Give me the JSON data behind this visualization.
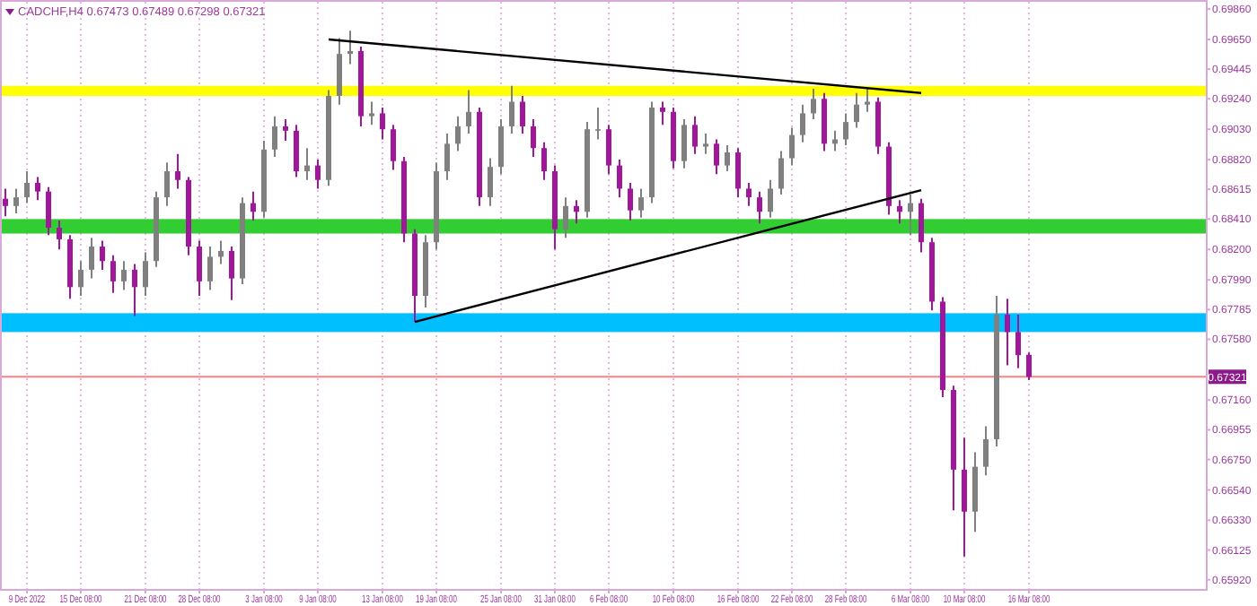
{
  "chart_data": {
    "type": "candlestick",
    "title": "CADCHF,H4 0.67473 0.67489 0.67298 0.67321",
    "categories": [
      null,
      null,
      "9 Dec 2022",
      null,
      null,
      null,
      null,
      "15 Dec 08:00",
      null,
      null,
      null,
      null,
      null,
      "21 Dec 08:00",
      null,
      null,
      null,
      null,
      "28 Dec 08:00",
      null,
      null,
      null,
      null,
      null,
      "3 Jan 08:00",
      null,
      null,
      null,
      null,
      "9 Jan 08:00",
      null,
      null,
      null,
      null,
      null,
      "13 Jan 08:00",
      null,
      null,
      null,
      null,
      "19 Jan 08:00",
      null,
      null,
      null,
      null,
      null,
      "25 Jan 08:00",
      null,
      null,
      null,
      null,
      "31 Jan 08:00",
      null,
      null,
      null,
      null,
      "6 Feb 08:00",
      null,
      null,
      null,
      null,
      null,
      "10 Feb 08:00",
      null,
      null,
      null,
      null,
      null,
      "16 Feb 08:00",
      null,
      null,
      null,
      null,
      "22 Feb 08:00",
      null,
      null,
      null,
      null,
      "28 Feb 08:00",
      null,
      null,
      null,
      null,
      null,
      "6 Mar 08:00",
      null,
      null,
      null,
      null,
      "10 Mar 08:00",
      null,
      null,
      null,
      null,
      null,
      "16 Mar 08:00",
      null,
      null,
      null,
      null,
      null,
      null,
      null,
      null,
      null,
      null,
      null,
      null,
      null,
      null,
      null,
      null
    ],
    "ohlc": [
      [
        0.6855,
        0.6862,
        0.6843,
        0.685
      ],
      [
        0.685,
        0.6862,
        0.6845,
        0.6856
      ],
      [
        0.6856,
        0.6874,
        0.6852,
        0.6866
      ],
      [
        0.6866,
        0.687,
        0.6854,
        0.686
      ],
      [
        0.686,
        0.6863,
        0.683,
        0.6835
      ],
      [
        0.6835,
        0.684,
        0.682,
        0.6827
      ],
      [
        0.6827,
        0.683,
        0.6786,
        0.6794
      ],
      [
        0.6794,
        0.6812,
        0.6788,
        0.6806
      ],
      [
        0.6806,
        0.6828,
        0.68,
        0.6822
      ],
      [
        0.6822,
        0.6826,
        0.6806,
        0.6812
      ],
      [
        0.6812,
        0.6816,
        0.679,
        0.6798
      ],
      [
        0.6798,
        0.6812,
        0.6792,
        0.6806
      ],
      [
        0.6806,
        0.681,
        0.6774,
        0.6794
      ],
      [
        0.6794,
        0.6818,
        0.6788,
        0.6812
      ],
      [
        0.6812,
        0.686,
        0.6808,
        0.6856
      ],
      [
        0.6856,
        0.688,
        0.685,
        0.6874
      ],
      [
        0.6874,
        0.6886,
        0.6862,
        0.6868
      ],
      [
        0.6868,
        0.687,
        0.6816,
        0.6822
      ],
      [
        0.6822,
        0.6826,
        0.6788,
        0.6798
      ],
      [
        0.6798,
        0.6822,
        0.6792,
        0.6815
      ],
      [
        0.6815,
        0.6826,
        0.681,
        0.6819
      ],
      [
        0.6819,
        0.6822,
        0.6785,
        0.68
      ],
      [
        0.68,
        0.6856,
        0.6796,
        0.6852
      ],
      [
        0.6852,
        0.686,
        0.684,
        0.6846
      ],
      [
        0.6846,
        0.6895,
        0.6842,
        0.6889
      ],
      [
        0.6889,
        0.6912,
        0.6884,
        0.6905
      ],
      [
        0.6905,
        0.691,
        0.6895,
        0.6902
      ],
      [
        0.6902,
        0.6906,
        0.687,
        0.6874
      ],
      [
        0.6874,
        0.689,
        0.6868,
        0.6878
      ],
      [
        0.6878,
        0.6882,
        0.6862,
        0.6868
      ],
      [
        0.6868,
        0.693,
        0.6864,
        0.6926
      ],
      [
        0.6926,
        0.6966,
        0.692,
        0.6955
      ],
      [
        0.6955,
        0.6971,
        0.6948,
        0.6957
      ],
      [
        0.6957,
        0.696,
        0.6905,
        0.6912
      ],
      [
        0.6912,
        0.6922,
        0.6906,
        0.6914
      ],
      [
        0.6914,
        0.6918,
        0.6896,
        0.6903
      ],
      [
        0.6903,
        0.6906,
        0.6875,
        0.6881
      ],
      [
        0.6881,
        0.6884,
        0.6825,
        0.6831
      ],
      [
        0.6831,
        0.6834,
        0.677,
        0.6788
      ],
      [
        0.6788,
        0.683,
        0.678,
        0.6825
      ],
      [
        0.6825,
        0.688,
        0.682,
        0.6874
      ],
      [
        0.6874,
        0.69,
        0.6868,
        0.6893
      ],
      [
        0.6893,
        0.6912,
        0.6888,
        0.6905
      ],
      [
        0.6905,
        0.693,
        0.69,
        0.6915
      ],
      [
        0.6915,
        0.6918,
        0.685,
        0.6856
      ],
      [
        0.6856,
        0.6883,
        0.685,
        0.6877
      ],
      [
        0.6877,
        0.691,
        0.6872,
        0.6905
      ],
      [
        0.6905,
        0.6933,
        0.69,
        0.6922
      ],
      [
        0.6922,
        0.6926,
        0.69,
        0.6905
      ],
      [
        0.6905,
        0.691,
        0.6884,
        0.689
      ],
      [
        0.689,
        0.6894,
        0.6868,
        0.6874
      ],
      [
        0.6874,
        0.6878,
        0.682,
        0.6834
      ],
      [
        0.6834,
        0.6856,
        0.6828,
        0.685
      ],
      [
        0.685,
        0.6854,
        0.6838,
        0.6846
      ],
      [
        0.6846,
        0.6908,
        0.6842,
        0.6903
      ],
      [
        0.6903,
        0.6918,
        0.6896,
        0.6903
      ],
      [
        0.6903,
        0.6906,
        0.6872,
        0.6878
      ],
      [
        0.6878,
        0.6882,
        0.6856,
        0.6862
      ],
      [
        0.6862,
        0.6866,
        0.684,
        0.6847
      ],
      [
        0.6847,
        0.6862,
        0.6842,
        0.6856
      ],
      [
        0.6856,
        0.6922,
        0.6852,
        0.6918
      ],
      [
        0.6918,
        0.6922,
        0.6906,
        0.6915
      ],
      [
        0.6915,
        0.6918,
        0.6876,
        0.6881
      ],
      [
        0.6881,
        0.691,
        0.6876,
        0.6906
      ],
      [
        0.6906,
        0.6912,
        0.6886,
        0.6891
      ],
      [
        0.6891,
        0.69,
        0.6886,
        0.6893
      ],
      [
        0.6893,
        0.6896,
        0.6872,
        0.6878
      ],
      [
        0.6878,
        0.6892,
        0.6874,
        0.6887
      ],
      [
        0.6887,
        0.689,
        0.6856,
        0.6862
      ],
      [
        0.6862,
        0.6866,
        0.685,
        0.6856
      ],
      [
        0.6856,
        0.686,
        0.6838,
        0.6846
      ],
      [
        0.6846,
        0.6868,
        0.6842,
        0.6862
      ],
      [
        0.6862,
        0.6888,
        0.6858,
        0.6883
      ],
      [
        0.6883,
        0.6904,
        0.6878,
        0.6899
      ],
      [
        0.6899,
        0.692,
        0.6894,
        0.6914
      ],
      [
        0.6914,
        0.6931,
        0.691,
        0.6924
      ],
      [
        0.6924,
        0.6928,
        0.6888,
        0.6893
      ],
      [
        0.6893,
        0.6902,
        0.6888,
        0.6896
      ],
      [
        0.6896,
        0.6914,
        0.6892,
        0.6908
      ],
      [
        0.6908,
        0.6928,
        0.6904,
        0.692
      ],
      [
        0.692,
        0.6931,
        0.6915,
        0.6922
      ],
      [
        0.6922,
        0.6925,
        0.6886,
        0.6891
      ],
      [
        0.6891,
        0.6894,
        0.6844,
        0.685
      ],
      [
        0.685,
        0.6854,
        0.6838,
        0.6846
      ],
      [
        0.6846,
        0.6858,
        0.683,
        0.6852
      ],
      [
        0.6852,
        0.6855,
        0.6818,
        0.6825
      ],
      [
        0.6825,
        0.6828,
        0.6778,
        0.6784
      ],
      [
        0.6784,
        0.6787,
        0.6718,
        0.6723
      ],
      [
        0.6723,
        0.6726,
        0.664,
        0.6668
      ],
      [
        0.6668,
        0.669,
        0.6608,
        0.6639
      ],
      [
        0.6639,
        0.668,
        0.6625,
        0.667
      ],
      [
        0.667,
        0.6698,
        0.6664,
        0.6689
      ],
      [
        0.6689,
        0.6788,
        0.6684,
        0.6775
      ],
      [
        0.6775,
        0.6786,
        0.674,
        0.6763
      ],
      [
        0.6763,
        0.6775,
        0.6738,
        0.6747
      ],
      [
        0.67473,
        0.67489,
        0.67298,
        0.67321
      ],
      null,
      null,
      null,
      null,
      null,
      null,
      null,
      null,
      null,
      null,
      null,
      null,
      null,
      null,
      null,
      null
    ],
    "colors": [
      "#a0179c",
      "#808080",
      "#808080",
      "#a0179c",
      "#a0179c",
      "#a0179c",
      "#a0179c",
      "#808080",
      "#808080",
      "#a0179c",
      "#a0179c",
      "#808080",
      "#a0179c",
      "#808080",
      "#808080",
      "#808080",
      "#a0179c",
      "#a0179c",
      "#a0179c",
      "#808080",
      "#808080",
      "#a0179c",
      "#808080",
      "#a0179c",
      "#808080",
      "#808080",
      "#a0179c",
      "#a0179c",
      "#808080",
      "#a0179c",
      "#808080",
      "#808080",
      "#808080",
      "#a0179c",
      "#808080",
      "#a0179c",
      "#a0179c",
      "#a0179c",
      "#a0179c",
      "#808080",
      "#808080",
      "#808080",
      "#808080",
      "#808080",
      "#a0179c",
      "#808080",
      "#808080",
      "#808080",
      "#a0179c",
      "#a0179c",
      "#a0179c",
      "#a0179c",
      "#808080",
      "#a0179c",
      "#808080",
      "#808080",
      "#a0179c",
      "#a0179c",
      "#a0179c",
      "#808080",
      "#808080",
      "#a0179c",
      "#a0179c",
      "#808080",
      "#a0179c",
      "#808080",
      "#a0179c",
      "#808080",
      "#a0179c",
      "#a0179c",
      "#a0179c",
      "#808080",
      "#808080",
      "#808080",
      "#808080",
      "#808080",
      "#a0179c",
      "#808080",
      "#808080",
      "#808080",
      "#808080",
      "#a0179c",
      "#a0179c",
      "#a0179c",
      "#808080",
      "#a0179c",
      "#a0179c",
      "#a0179c",
      "#a0179c",
      "#a0179c",
      "#808080",
      "#808080",
      "#808080",
      "#a0179c",
      "#a0179c",
      "#a0179c",
      null,
      null,
      null,
      null,
      null,
      null,
      null,
      null,
      null,
      null,
      null,
      null,
      null,
      null,
      null,
      null
    ],
    "series": [
      {
        "type": "line",
        "color": "#000000",
        "values": [
          null,
          null,
          null,
          null,
          null,
          null,
          null,
          null,
          null,
          null,
          null,
          null,
          null,
          null,
          null,
          null,
          null,
          null,
          null,
          null,
          null,
          null,
          null,
          null,
          null,
          null,
          null,
          null,
          null,
          null,
          0.6965,
          null,
          null,
          null,
          null,
          null,
          null,
          null,
          null,
          null,
          null,
          null,
          null,
          null,
          null,
          null,
          null,
          null,
          null,
          null,
          null,
          null,
          null,
          null,
          null,
          null,
          null,
          null,
          null,
          null,
          null,
          null,
          null,
          null,
          null,
          null,
          null,
          null,
          null,
          null,
          null,
          null,
          null,
          null,
          null,
          null,
          null,
          null,
          null,
          null,
          null,
          null,
          null,
          null,
          null,
          0.6928,
          null,
          null,
          null,
          null,
          null,
          null,
          null,
          null,
          null,
          null,
          null,
          null,
          null,
          null,
          null,
          null,
          null,
          null,
          null,
          null,
          null,
          null,
          null,
          null,
          null,
          null
        ]
      },
      {
        "type": "line",
        "color": "#000000",
        "values": [
          null,
          null,
          null,
          null,
          null,
          null,
          null,
          null,
          null,
          null,
          null,
          null,
          null,
          null,
          null,
          null,
          null,
          null,
          null,
          null,
          null,
          null,
          null,
          null,
          null,
          null,
          null,
          null,
          null,
          null,
          null,
          null,
          null,
          null,
          null,
          null,
          null,
          null,
          0.677,
          null,
          null,
          null,
          null,
          null,
          null,
          null,
          null,
          null,
          null,
          null,
          null,
          null,
          null,
          null,
          null,
          null,
          null,
          null,
          null,
          null,
          null,
          null,
          null,
          null,
          null,
          null,
          null,
          null,
          null,
          null,
          null,
          null,
          null,
          null,
          null,
          null,
          null,
          null,
          null,
          null,
          null,
          null,
          null,
          null,
          null,
          0.6861,
          null,
          null,
          null,
          null,
          null,
          null,
          null,
          null,
          null,
          null,
          null,
          null,
          null,
          null,
          null,
          null,
          null,
          null,
          null,
          null,
          null,
          null,
          null,
          null,
          null,
          null
        ]
      }
    ],
    "ylim": [
      0.6585,
      0.6991
    ],
    "yticks": [
      {
        "value": 0.6986,
        "label": "0.69860"
      },
      {
        "value": 0.6965,
        "label": "0.69650"
      },
      {
        "value": 0.69445,
        "label": "0.69445"
      },
      {
        "value": 0.6924,
        "label": "0.69240"
      },
      {
        "value": 0.6903,
        "label": "0.69030"
      },
      {
        "value": 0.6882,
        "label": "0.68820"
      },
      {
        "value": 0.68615,
        "label": "0.68615"
      },
      {
        "value": 0.6841,
        "label": "0.68410"
      },
      {
        "value": 0.682,
        "label": "0.68200"
      },
      {
        "value": 0.6799,
        "label": "0.67990"
      },
      {
        "value": 0.67785,
        "label": "0.67785"
      },
      {
        "value": 0.6758,
        "label": "0.67580"
      },
      {
        "value": 0.6716,
        "label": "0.67160"
      },
      {
        "value": 0.66955,
        "label": "0.66955"
      },
      {
        "value": 0.6675,
        "label": "0.66750"
      },
      {
        "value": 0.6654,
        "label": "0.66540"
      },
      {
        "value": 0.6633,
        "label": "0.66330"
      },
      {
        "value": 0.66125,
        "label": "0.66125"
      },
      {
        "value": 0.6592,
        "label": "0.65920"
      }
    ],
    "bands": [
      {
        "axis": "y",
        "from": 0.6926,
        "to": 0.6933,
        "color": "#ffff00"
      },
      {
        "axis": "y",
        "from": 0.6831,
        "to": 0.6841,
        "color": "#32cd32"
      },
      {
        "axis": "y",
        "from": 0.6763,
        "to": 0.6776,
        "color": "#00bfff"
      }
    ],
    "ref_lines": [
      {
        "axis": "y",
        "value": 0.67321,
        "label": "0.67321",
        "color": "#ff8080"
      }
    ],
    "grid": "x"
  }
}
